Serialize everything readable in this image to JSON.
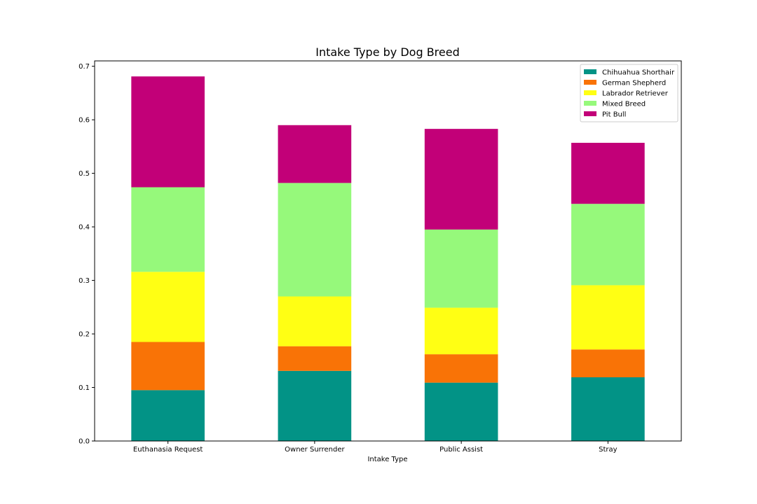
{
  "chart_data": {
    "type": "bar",
    "stacked": true,
    "title": "Intake Type by Dog Breed",
    "xlabel": "Intake Type",
    "ylabel": "",
    "categories": [
      "Euthanasia Request",
      "Owner Surrender",
      "Public Assist",
      "Stray"
    ],
    "ylim": [
      0,
      0.71
    ],
    "yticks": [
      "0.0",
      "0.1",
      "0.2",
      "0.3",
      "0.4",
      "0.5",
      "0.6",
      "0.7"
    ],
    "legend_position": "top-right",
    "grid": false,
    "series": [
      {
        "name": "Chihuahua Shorthair",
        "color": "#029386",
        "values": [
          0.095,
          0.131,
          0.109,
          0.119
        ]
      },
      {
        "name": "German Shepherd",
        "color": "#f97306",
        "values": [
          0.09,
          0.046,
          0.053,
          0.052
        ]
      },
      {
        "name": "Labrador Retriever",
        "color": "#ffff14",
        "values": [
          0.131,
          0.093,
          0.087,
          0.12
        ]
      },
      {
        "name": "Mixed Breed",
        "color": "#96f97b",
        "values": [
          0.158,
          0.212,
          0.146,
          0.152
        ]
      },
      {
        "name": "Pit Bull",
        "color": "#c20078",
        "values": [
          0.207,
          0.108,
          0.188,
          0.114
        ]
      }
    ]
  }
}
